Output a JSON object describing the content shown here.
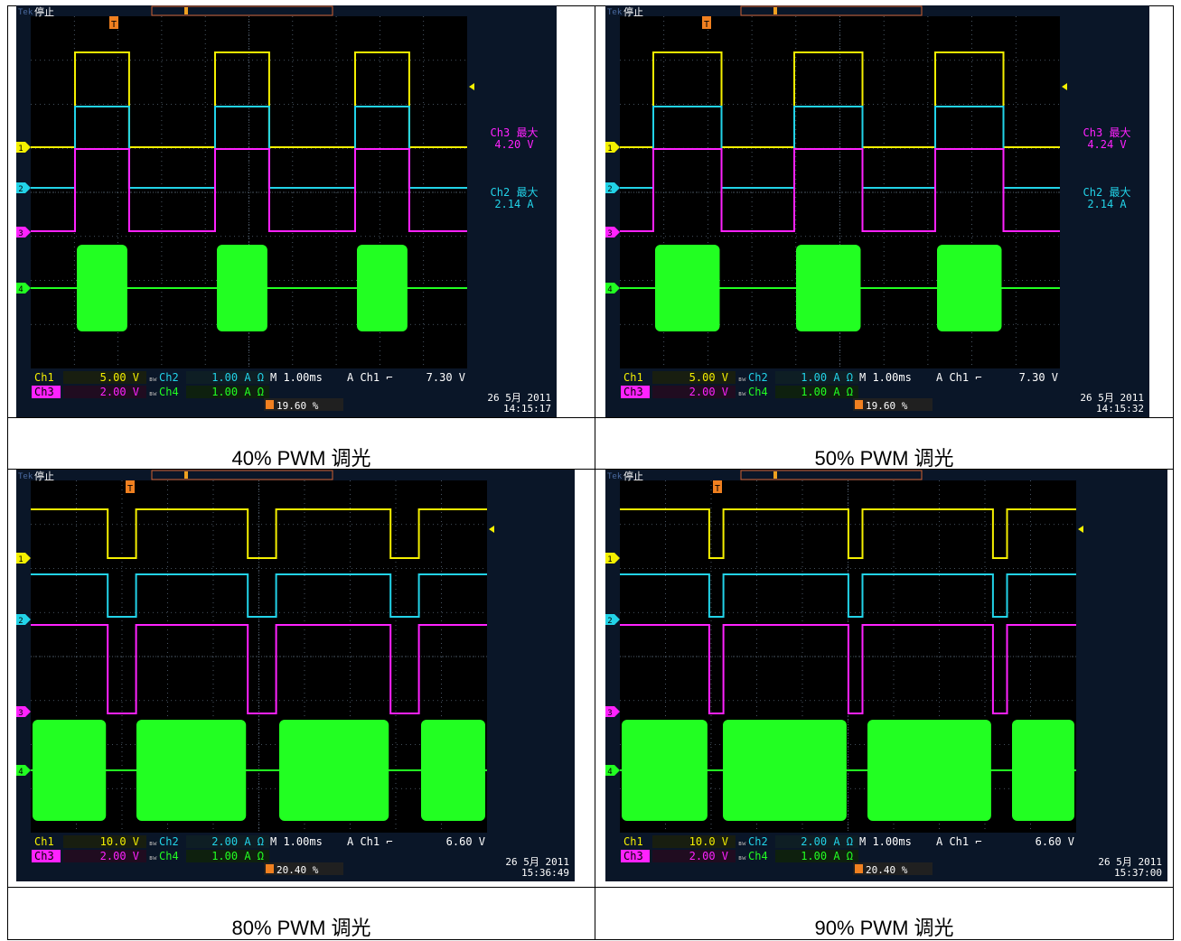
{
  "panels": [
    {
      "caption": "40% PWM 调光",
      "status": "停止",
      "trig_mark": "T",
      "readout_ch3": {
        "label": "Ch3 最大",
        "value": "4.20 V"
      },
      "readout_ch2": {
        "label": "Ch2 最大",
        "value": "2.14 A"
      },
      "settings": {
        "ch1_label": "Ch1",
        "ch1_scale": "5.00 V",
        "ch2_label": "Ch2",
        "ch2_scale": "1.00 A Ω",
        "ch3_label": "Ch3",
        "ch3_scale": "2.00 V",
        "ch4_label": "Ch4",
        "ch4_scale": "1.00 A Ω",
        "timebase": "M 1.00ms",
        "trigger": "A  Ch1  ⌐",
        "trigger_level": "7.30 V",
        "position": "19.60 %",
        "date": "26 5月  2011",
        "time": "14:15:17"
      },
      "duty": 0.4
    },
    {
      "caption": "50% PWM 调光",
      "status": "停止",
      "trig_mark": "T",
      "readout_ch3": {
        "label": "Ch3 最大",
        "value": "4.24 V"
      },
      "readout_ch2": {
        "label": "Ch2 最大",
        "value": "2.14 A"
      },
      "settings": {
        "ch1_label": "Ch1",
        "ch1_scale": "5.00 V",
        "ch2_label": "Ch2",
        "ch2_scale": "1.00 A Ω",
        "ch3_label": "Ch3",
        "ch3_scale": "2.00 V",
        "ch4_label": "Ch4",
        "ch4_scale": "1.00 A Ω",
        "timebase": "M 1.00ms",
        "trigger": "A  Ch1  ⌐",
        "trigger_level": "7.30 V",
        "position": "19.60 %",
        "date": "26 5月  2011",
        "time": "14:15:32"
      },
      "duty": 0.5
    },
    {
      "caption": "80% PWM 调光",
      "status": "停止",
      "trig_mark": "T",
      "readout_ch3": null,
      "readout_ch2": null,
      "settings": {
        "ch1_label": "Ch1",
        "ch1_scale": "10.0 V",
        "ch2_label": "Ch2",
        "ch2_scale": "2.00 A Ω",
        "ch3_label": "Ch3",
        "ch3_scale": "2.00 V",
        "ch4_label": "Ch4",
        "ch4_scale": "1.00 A Ω",
        "timebase": "M 1.00ms",
        "trigger": "A  Ch1  ⌐",
        "trigger_level": "6.60 V",
        "position": "20.40 %",
        "date": "26 5月  2011",
        "time": "15:36:49"
      },
      "duty": 0.8
    },
    {
      "caption": "90% PWM 调光",
      "status": "停止",
      "trig_mark": "T",
      "readout_ch3": null,
      "readout_ch2": null,
      "settings": {
        "ch1_label": "Ch1",
        "ch1_scale": "10.0 V",
        "ch2_label": "Ch2",
        "ch2_scale": "2.00 A Ω",
        "ch3_label": "Ch3",
        "ch3_scale": "2.00 V",
        "ch4_label": "Ch4",
        "ch4_scale": "1.00 A Ω",
        "timebase": "M 1.00ms",
        "trigger": "A  Ch1  ⌐",
        "trigger_level": "6.60 V",
        "position": "20.40 %",
        "date": "26 5月  2011",
        "time": "15:37:00"
      },
      "duty": 0.9
    }
  ],
  "colors": {
    "ch1": "#f5f000",
    "ch2": "#22d3e8",
    "ch3": "#ff22ff",
    "ch4": "#22ff22",
    "grid": "#5a6a7a",
    "screen": "#000000",
    "bezel": "#0a1628"
  },
  "chart_data": [
    {
      "type": "line",
      "title": "40% PWM 调光",
      "duty_cycle": 0.4,
      "series": [
        {
          "name": "Ch1"
        },
        {
          "name": "Ch2"
        },
        {
          "name": "Ch3"
        },
        {
          "name": "Ch4"
        }
      ]
    },
    {
      "type": "line",
      "title": "50% PWM 调光",
      "duty_cycle": 0.5,
      "series": [
        {
          "name": "Ch1"
        },
        {
          "name": "Ch2"
        },
        {
          "name": "Ch3"
        },
        {
          "name": "Ch4"
        }
      ]
    },
    {
      "type": "line",
      "title": "80% PWM 调光",
      "duty_cycle": 0.8,
      "series": [
        {
          "name": "Ch1"
        },
        {
          "name": "Ch2"
        },
        {
          "name": "Ch3"
        },
        {
          "name": "Ch4"
        }
      ]
    },
    {
      "type": "line",
      "title": "90% PWM 调光",
      "duty_cycle": 0.9,
      "series": [
        {
          "name": "Ch1"
        },
        {
          "name": "Ch2"
        },
        {
          "name": "Ch3"
        },
        {
          "name": "Ch4"
        }
      ]
    }
  ]
}
